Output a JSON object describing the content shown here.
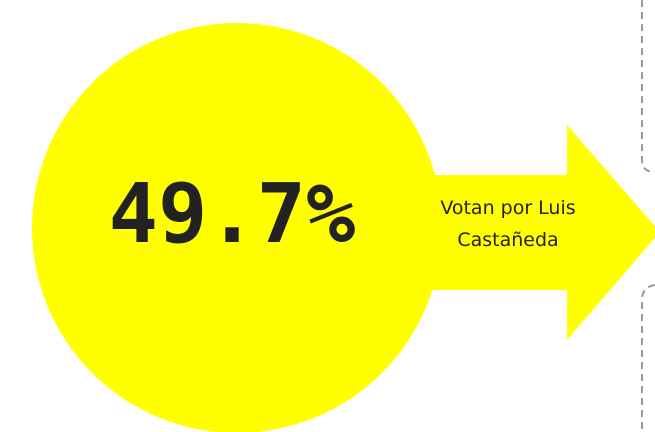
{
  "stat": "49.7%",
  "caption_lines": [
    "Votan por Luis",
    "Castañeda"
  ]
}
